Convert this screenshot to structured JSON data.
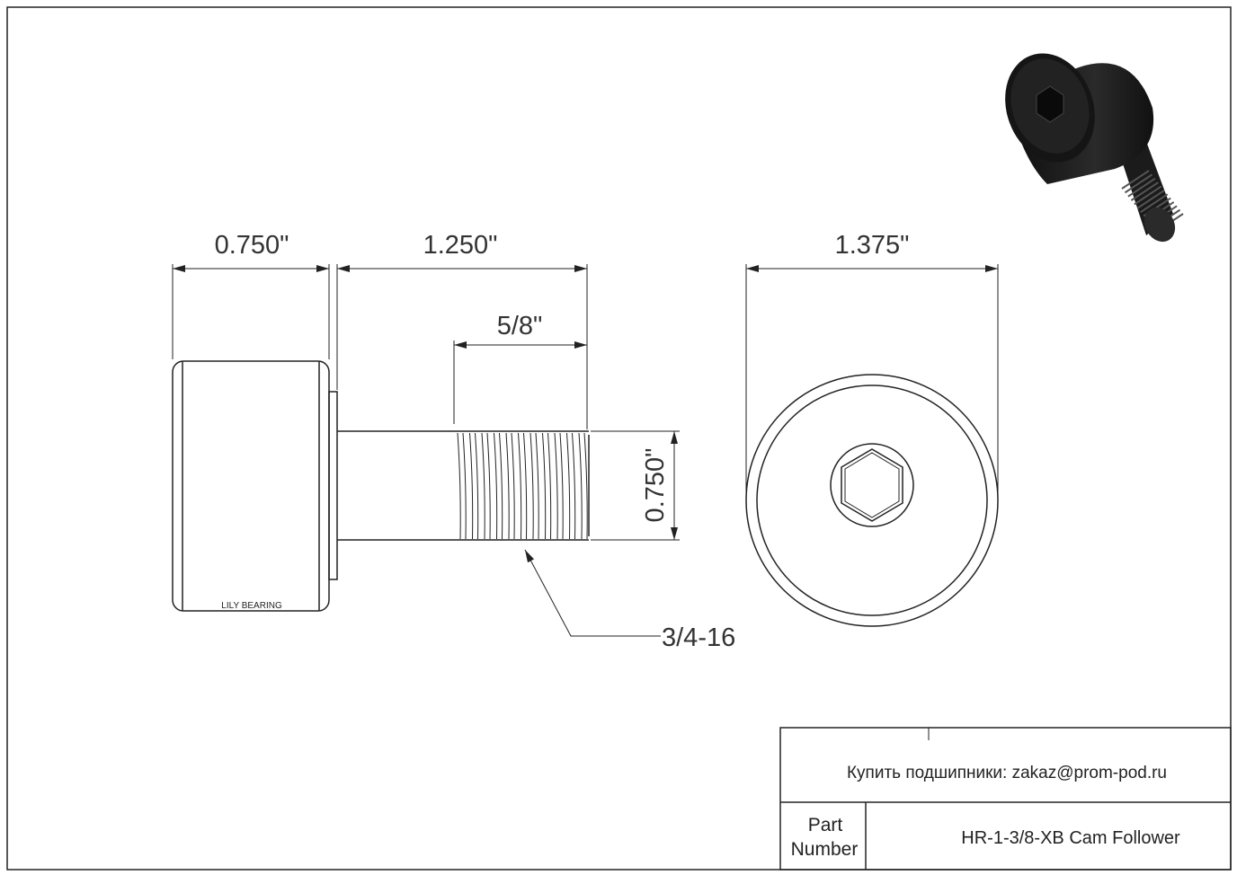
{
  "dimensions": {
    "roller_width": "0.750\"",
    "stud_length": "1.250\"",
    "thread_length": "5/8\"",
    "stud_diameter": "0.750\"",
    "thread_spec": "3/4-16",
    "roller_diameter": "1.375\""
  },
  "brand_mark": "LILY BEARING",
  "title_block": {
    "contact": "Купить подшипники: zakaz@prom-pod.ru",
    "part_label_line1": "Part",
    "part_label_line2": "Number",
    "part_number": "HR-1-3/8-XB Cam Follower"
  },
  "colors": {
    "line": "#222222",
    "text": "#333333",
    "part_render": "#1a1a1a"
  }
}
